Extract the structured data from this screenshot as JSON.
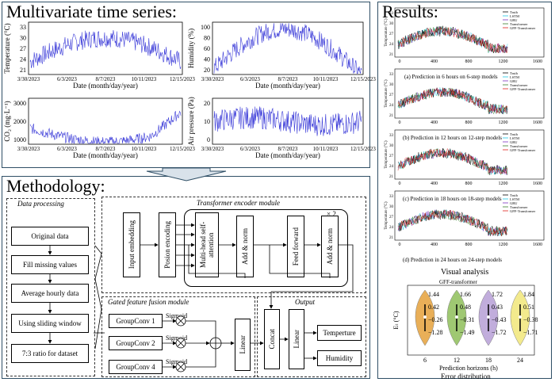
{
  "multivariate": {
    "title": "Multivariate time series:",
    "x_ticks": [
      "3/30/2023",
      "6/3/2023",
      "8/7/2023",
      "10/11/2023",
      "12/15/2023"
    ],
    "xlabel": "Date (month/day/year)",
    "plots": [
      {
        "ylabel": "Temperature (°C)",
        "yticks": [
          "33",
          "30",
          "27",
          "24",
          "21"
        ]
      },
      {
        "ylabel": "Humidity (%)",
        "yticks": [
          "100",
          "80",
          "60",
          "40",
          "20"
        ]
      },
      {
        "ylabel": "CO₂ (mg·L⁻¹)",
        "yticks": [
          "3000",
          "2000",
          "1000"
        ]
      },
      {
        "ylabel": "Air pressure (Pa)",
        "yticks": [
          "20",
          "10",
          "0"
        ]
      }
    ]
  },
  "methodology": {
    "title": "Methodology:",
    "data_processing": {
      "title": "Data processing",
      "steps": [
        "Original data",
        "Fill missing values",
        "Average hourly data",
        "Using sliding window",
        "7:3 ratio for dataset"
      ]
    },
    "encoder": {
      "title": "Transformer encoder module",
      "blocks": [
        "Input embedding",
        "Posion encoding",
        "Multi-head self-attention",
        "Add & norm",
        "Feed forward",
        "Add & norm"
      ],
      "repeat": "× 2"
    },
    "gated": {
      "title": "Gated feature fusion module",
      "convs": [
        "GroupConv 1",
        "GroupConv 2",
        "GroupConv 4"
      ],
      "sigmoid": "Sigmoid",
      "linear": "Linear"
    },
    "output": {
      "title": "Output",
      "concat": "Concat",
      "linear": "Linear",
      "targets": [
        "Temperture",
        "Humidity"
      ]
    }
  },
  "results": {
    "title": "Results:",
    "legend": [
      "Truth",
      "LSTM",
      "GRU",
      "Transformer",
      "GFF-Transformer"
    ],
    "ylabel": "Temperature (°C)",
    "yticks": [
      "33",
      "30",
      "27",
      "24",
      "21"
    ],
    "xticks": [
      "0",
      "400",
      "800",
      "1200",
      "1600"
    ],
    "captions": [
      "(a) Prediction in 6 hours on 6-step models",
      "(b) Prediction in 12 hours on 12-step models",
      "(c) Prediction in 18 hours on 18-step models",
      "(d) Prediction in 24 hours on 24-step models"
    ],
    "visual_title": "Visual analysis",
    "violin": {
      "title": "GFF-transformer",
      "ylabel": "Eₜ (°C)",
      "xlabel": "Prediction horizons (h)",
      "caption": "Error distribution",
      "groups": [
        {
          "horizon": "6",
          "upper": "1.44",
          "q3": "0.42",
          "median": "−0.26",
          "lower": "−1.28",
          "color": "#e6a23c"
        },
        {
          "horizon": "12",
          "upper": "1.66",
          "q3": "0.48",
          "median": "−0.31",
          "lower": "−1.49",
          "color": "#8fbf5a"
        },
        {
          "horizon": "18",
          "upper": "1.72",
          "q3": "0.43",
          "median": "−0.43",
          "lower": "−1.72",
          "color": "#b79fd6"
        },
        {
          "horizon": "24",
          "upper": "1.84",
          "q3": "0.51",
          "median": "−0.38",
          "lower": "−1.71",
          "color": "#f2e77a"
        }
      ]
    }
  },
  "colors": {
    "border": "#2f4f66",
    "truth": "#000000",
    "lstm": "#1ec8e6",
    "gru": "#7b2fbf",
    "transformer": "#3a7d2a",
    "gff": "#e0201b",
    "series": "#3a3ad8"
  }
}
